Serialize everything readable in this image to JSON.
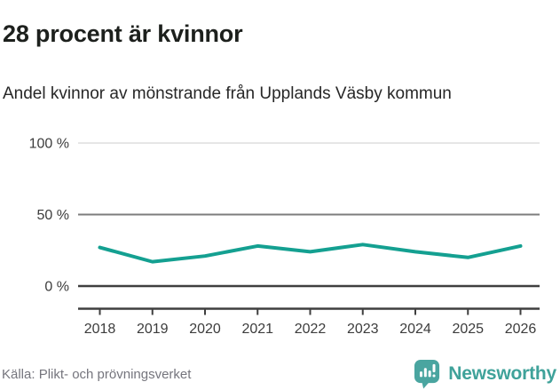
{
  "header": {
    "title": "28 procent är kvinnor",
    "subtitle": "Andel kvinnor av mönstrande från Upplands Väsby kommun"
  },
  "chart_data": {
    "type": "line",
    "title": "28 procent är kvinnor",
    "subtitle": "Andel kvinnor av mönstrande från Upplands Väsby kommun",
    "x": [
      "2018",
      "2019",
      "2020",
      "2021",
      "2022",
      "2023",
      "2024",
      "2025",
      "2026"
    ],
    "series": [
      {
        "name": "Andel kvinnor av mönstrande",
        "values": [
          27,
          17,
          21,
          28,
          24,
          29,
          24,
          20,
          28
        ]
      }
    ],
    "unit": "%",
    "ylim": [
      0,
      100
    ],
    "yticks": [
      {
        "value": 0,
        "label": "0 %"
      },
      {
        "value": 50,
        "label": "50 %"
      },
      {
        "value": 100,
        "label": "100 %"
      }
    ],
    "grid": true,
    "legend": "none",
    "line_color": "#14a091"
  },
  "footer": {
    "source": "Källa: Plikt- och prövningsverket",
    "brand": "Newsworthy"
  },
  "colors": {
    "line": "#14a091",
    "brand_teal": "#4aa5a0",
    "brand_text": "#3fa29a",
    "title_text": "#1d201d",
    "body_text": "#272727",
    "axis_text": "#3c3c3c",
    "source_text": "#75757d",
    "grid_light": "#d8d8d8",
    "grid_mid": "#7d7d7d",
    "axis_dark": "#3f3f3f"
  }
}
